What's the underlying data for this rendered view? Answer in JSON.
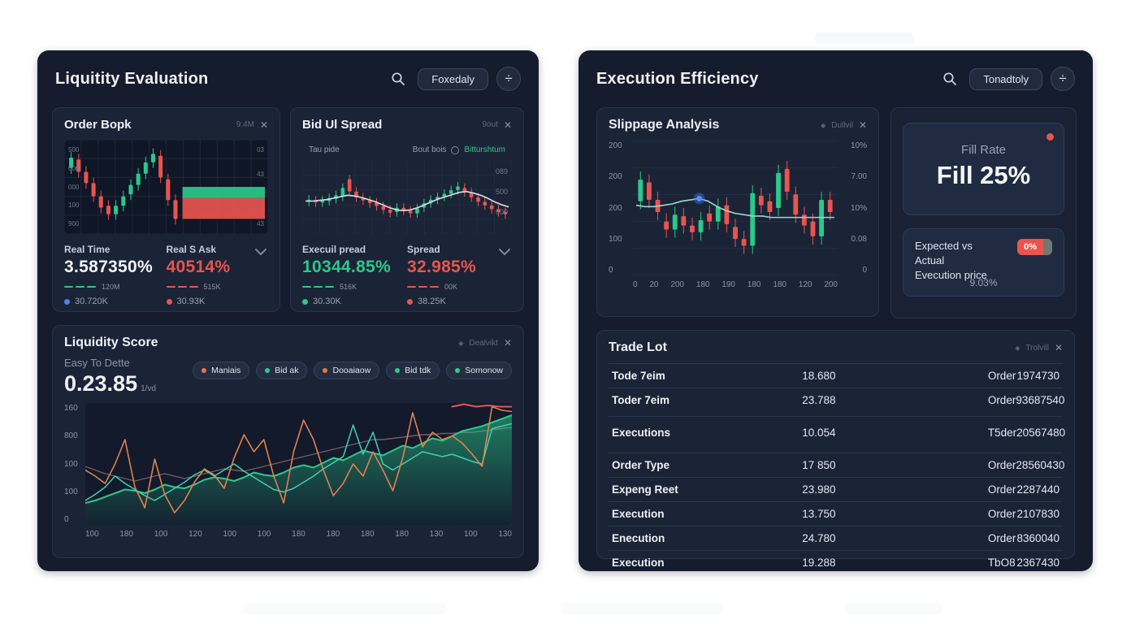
{
  "colors": {
    "green": "#2bc98a",
    "red": "#e8554e",
    "orange": "#e0824f",
    "teal": "#41d0b2",
    "blue": "#4f83e8",
    "white_line": "#d9dfe8",
    "badge_red": "#e8554e"
  },
  "left_panel": {
    "title": "Liquitity Evaluation",
    "toolbar": {
      "period_label": "Foxedaly",
      "divide_glyph": "÷"
    },
    "order_book": {
      "title": "Order Bopk",
      "meta": "9:4M",
      "close_glyph": "✕",
      "chart": {
        "grid": "mesh",
        "y_left": [
          "500",
          "600",
          "000",
          "100",
          "900"
        ],
        "y_right": [
          "03",
          "43",
          "08",
          "43"
        ],
        "candles": [
          [
            70,
            81
          ],
          [
            79,
            66
          ],
          [
            66,
            54
          ],
          [
            54,
            40
          ],
          [
            40,
            28
          ],
          [
            30,
            21
          ],
          [
            21,
            30
          ],
          [
            30,
            40
          ],
          [
            42,
            52
          ],
          [
            52,
            64
          ],
          [
            64,
            76
          ],
          [
            76,
            85
          ],
          [
            83,
            60
          ],
          [
            58,
            36
          ],
          [
            36,
            16
          ]
        ],
        "bands": {
          "green": [
            38,
            50
          ],
          "red": [
            16,
            38
          ],
          "x_start": 0.58
        }
      },
      "stats": [
        {
          "label": "Real Time",
          "value": "3.587350%",
          "value_color": "#f2f4f8",
          "legend": "120M",
          "legend_color": "#2bc98a",
          "dot_label": "30.720K",
          "dot_color": "#4f83e8"
        },
        {
          "label": "Real S Ask",
          "value": "40514%",
          "value_color": "#e8554e",
          "legend": "515K",
          "legend_color": "#e8554e",
          "dot_label": "30.93K",
          "dot_color": "#e8554e"
        }
      ]
    },
    "bid_spread": {
      "title": "Bid Ul Spread",
      "meta": "9out",
      "close_glyph": "✕",
      "chart": {
        "grid": "faint",
        "corner_label": "Tau pide",
        "legend_left": "Bout bois",
        "legend_right": "Bitturshtum",
        "y_right": [
          "089",
          "500",
          "000"
        ],
        "candles": [
          [
            44,
            47
          ],
          [
            46,
            43
          ],
          [
            43,
            46
          ],
          [
            45,
            49
          ],
          [
            48,
            53
          ],
          [
            51,
            63
          ],
          [
            75,
            58
          ],
          [
            58,
            50
          ],
          [
            50,
            46
          ],
          [
            46,
            42
          ],
          [
            43,
            38
          ],
          [
            38,
            33
          ],
          [
            33,
            29
          ],
          [
            30,
            36
          ],
          [
            36,
            32
          ],
          [
            32,
            28
          ],
          [
            28,
            35
          ],
          [
            36,
            42
          ],
          [
            42,
            47
          ],
          [
            47,
            51
          ],
          [
            51,
            55
          ],
          [
            55,
            60
          ],
          [
            60,
            65
          ],
          [
            63,
            57
          ],
          [
            57,
            50
          ],
          [
            50,
            44
          ],
          [
            44,
            39
          ],
          [
            39,
            34
          ],
          [
            34,
            30
          ],
          [
            30,
            27
          ]
        ],
        "line": [
          45,
          45,
          46,
          47,
          49,
          51,
          53,
          52,
          50,
          47,
          44,
          40,
          36,
          33,
          32,
          33,
          36,
          40,
          44,
          48,
          51,
          54,
          57,
          58,
          56,
          53,
          49,
          44,
          40,
          37
        ],
        "line_color": "#d9dfe8"
      },
      "stats": [
        {
          "label": "Execuil pread",
          "value": "10344.85%",
          "value_color": "#2bc98a",
          "legend": "516K",
          "legend_color": "#2bc98a",
          "dot_label": "30.30K",
          "dot_color": "#2bc98a"
        },
        {
          "label": "Spread",
          "value": "32.985%",
          "value_color": "#e8554e",
          "legend": "00K",
          "legend_color": "#e8554e",
          "dot_label": "38.25K",
          "dot_color": "#e8554e"
        }
      ]
    },
    "liquidity_score": {
      "title": "Liquidity Score",
      "meta": "Dealvikt",
      "close_glyph": "✕",
      "subtitle": "Easy To Dette",
      "value": "0.23.85",
      "value_suffix": "1/vd",
      "pills": [
        {
          "label": "Maniais",
          "dot": "#e8734f"
        },
        {
          "label": "Bid ak",
          "dot": "#2fc98c"
        },
        {
          "label": "Dooaiaow",
          "dot": "#e8734f"
        },
        {
          "label": "Bid tdk",
          "dot": "#2fc98c"
        },
        {
          "label": "Somonow",
          "dot": "#2fc98c"
        }
      ],
      "chart": {
        "y_left": [
          "160",
          "800",
          "100",
          "100",
          "0"
        ],
        "x": [
          "100",
          "180",
          "100",
          "120",
          "100",
          "100",
          "180",
          "180",
          "180",
          "180",
          "130",
          "100",
          "130"
        ],
        "series": [
          {
            "name": "baseline",
            "color": "#7a5a60",
            "width": 1.4,
            "values": [
              48,
              45,
              42,
              40,
              38,
              36,
              38,
              40,
              42,
              40,
              38,
              40,
              42,
              44,
              46,
              45,
              44,
              46,
              48,
              50,
              52,
              54,
              56,
              58,
              60,
              62,
              64,
              66,
              68,
              70,
              70,
              71,
              72,
              73,
              74,
              74,
              75,
              75,
              76,
              76,
              77,
              78,
              79,
              80
            ]
          },
          {
            "name": "score-area",
            "color": "#2bc98a",
            "width": 2,
            "fill": true,
            "values": [
              18,
              20,
              23,
              26,
              29,
              28,
              26,
              29,
              33,
              31,
              30,
              33,
              37,
              39,
              38,
              36,
              39,
              43,
              41,
              40,
              43,
              47,
              49,
              47,
              51,
              55,
              53,
              57,
              61,
              59,
              57,
              61,
              65,
              63,
              67,
              71,
              69,
              73,
              77,
              79,
              81,
              84,
              87,
              90
            ]
          },
          {
            "name": "teal-line",
            "color": "#41d0b2",
            "width": 1.5,
            "values": [
              20,
              25,
              31,
              40,
              34,
              29,
              24,
              20,
              25,
              30,
              35,
              41,
              45,
              40,
              45,
              50,
              44,
              39,
              34,
              29,
              27,
              30,
              35,
              40,
              46,
              51,
              56,
              82,
              58,
              76,
              50,
              45,
              50,
              55,
              60,
              58,
              56,
              58,
              55,
              52,
              50,
              79,
              81,
              83
            ]
          },
          {
            "name": "orange-line",
            "color": "#e0824f",
            "width": 1.6,
            "values": [
              45,
              40,
              34,
              50,
              70,
              31,
              14,
              54,
              25,
              10,
              20,
              35,
              46,
              41,
              30,
              55,
              74,
              60,
              70,
              40,
              18,
              60,
              86,
              70,
              45,
              24,
              34,
              50,
              40,
              60,
              45,
              28,
              55,
              92,
              64,
              76,
              70,
              73,
              67,
              58,
              48,
              97,
              94,
              93
            ]
          },
          {
            "name": "red-cap",
            "color": "#e8554e",
            "width": 2,
            "x_start": 0.86,
            "values": [
              97,
              99,
              97,
              98,
              97,
              97
            ]
          }
        ]
      }
    }
  },
  "right_panel": {
    "title": "Execution Efficiency",
    "toolbar": {
      "period_label": "Tonadtoly",
      "divide_glyph": "÷"
    },
    "slippage": {
      "title": "Slippage Analysis",
      "meta": "Dullvil",
      "close_glyph": "✕",
      "chart": {
        "grid": "h",
        "y_left": [
          "200",
          "200",
          "200",
          "100",
          "0"
        ],
        "y_right": [
          "10%",
          "7.00",
          "10%",
          "0.08",
          "0"
        ],
        "x": [
          "0",
          "20",
          "200",
          "180",
          "190",
          "180",
          "180",
          "120",
          "200"
        ],
        "candles": [
          [
            55,
            71
          ],
          [
            69,
            56
          ],
          [
            56,
            47
          ],
          [
            40,
            34
          ],
          [
            34,
            45
          ],
          [
            44,
            37
          ],
          [
            37,
            32
          ],
          [
            32,
            41
          ],
          [
            46,
            40
          ],
          [
            40,
            51
          ],
          [
            52,
            38
          ],
          [
            36,
            27
          ],
          [
            27,
            22
          ],
          [
            22,
            61
          ],
          [
            59,
            52
          ],
          [
            55,
            47
          ],
          [
            50,
            76
          ],
          [
            79,
            62
          ],
          [
            60,
            45
          ],
          [
            45,
            37
          ],
          [
            40,
            29
          ],
          [
            29,
            56
          ],
          [
            56,
            47
          ]
        ],
        "line": [
          52,
          51,
          51,
          52,
          53,
          55,
          56,
          57,
          55,
          51,
          48,
          46,
          45,
          44,
          44,
          43,
          43,
          43,
          43,
          43,
          43,
          43,
          43
        ],
        "line_color": "#9ad8cf",
        "dot_index": 7
      }
    },
    "fill_rate": {
      "label": "Fill Rate",
      "value": "Fill 25%",
      "indicator_color": "#e8554e"
    },
    "expected": {
      "line1": "Expected vs Actual",
      "line2": "Evecution price",
      "badge": "0%",
      "sub_value": "9.03%"
    },
    "trade_lot": {
      "title": "Trade Lot",
      "meta": "Trolvill",
      "close_glyph": "✕",
      "rows": [
        {
          "name": "Tode 7eim",
          "qty": "18.680",
          "type": "Order",
          "id": "1974730",
          "group": 1
        },
        {
          "name": "Toder 7eim",
          "qty": "23.788",
          "type": "Order",
          "id": "93687540",
          "group": 1
        },
        {
          "name": "Executions",
          "qty": "10.054",
          "type": "T5der",
          "id": "20567480",
          "group": 2
        },
        {
          "name": "Order Type",
          "qty": "17 850",
          "type": "Order",
          "id": "28560430",
          "group": 3
        },
        {
          "name": "Expeng Reet",
          "qty": "23.980",
          "type": "Order",
          "id": "2287440",
          "group": 3
        },
        {
          "name": "Execution",
          "qty": "13.750",
          "type": "Order",
          "id": "2107830",
          "group": 3
        },
        {
          "name": "Enecution",
          "qty": "24.780",
          "type": "Order",
          "id": "8360040",
          "group": 3
        },
        {
          "name": "Execution",
          "qty": "19.288",
          "type": "TbO8",
          "id": "2367430",
          "group": 3
        }
      ]
    }
  }
}
